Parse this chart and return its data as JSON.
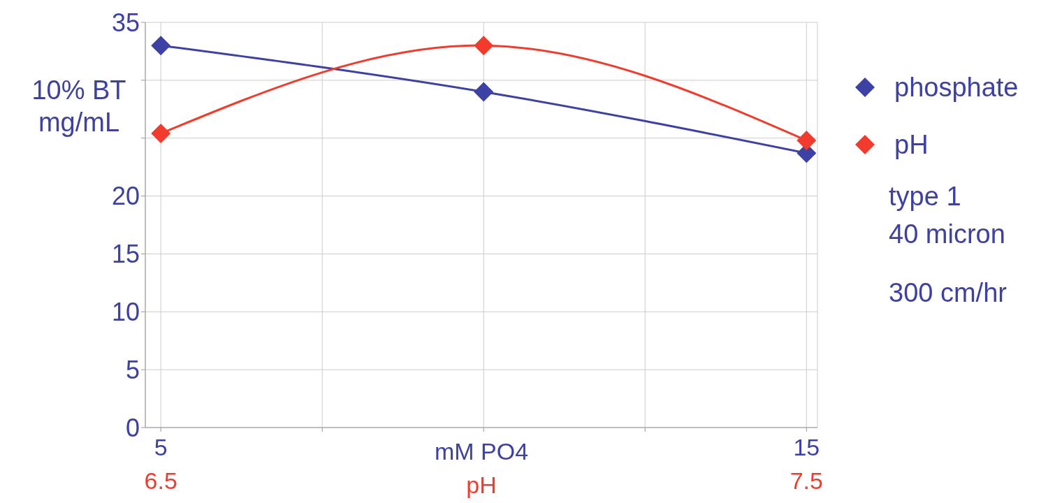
{
  "chart_data": {
    "type": "line",
    "ylabel": "10% BT mg/mL",
    "xlabel": "mM PO4",
    "x2label": "pH",
    "xlim": [
      4.76,
      15.17
    ],
    "xticks": [
      5,
      {
        "value": 7.5,
        "label": null
      },
      {
        "value": 10,
        "label": null
      },
      {
        "value": 12.5,
        "label": null
      },
      15
    ],
    "x2lim": [
      6.476,
      7.517
    ],
    "x2ticks": [
      6.5,
      7.5
    ],
    "ylim": [
      0,
      35
    ],
    "yticks": [
      0,
      5,
      10,
      15,
      20,
      {
        "value": 25,
        "label": null
      },
      {
        "value": 30,
        "label": null
      },
      35
    ],
    "grid": true,
    "legend": "right",
    "marker": "diamond",
    "line_style": "solid",
    "series": [
      {
        "name": "phosphate",
        "color": "#3d41a3",
        "x": [
          5,
          10,
          15
        ],
        "values": [
          33.0,
          29.0,
          23.7
        ]
      },
      {
        "name": "pH",
        "color": "#f23b2c",
        "axis": "x2",
        "x": [
          6.5,
          7.0,
          7.5
        ],
        "values": [
          25.4,
          33.0,
          24.8
        ]
      }
    ],
    "annotations": [
      "type 1",
      "40 micron",
      "300 cm/hr"
    ]
  }
}
